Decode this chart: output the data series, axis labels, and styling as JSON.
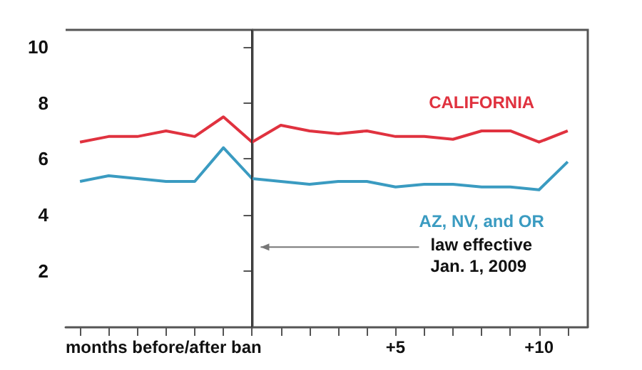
{
  "chart_data": {
    "type": "line",
    "xlabel": "months before/after ban",
    "x": [
      -6,
      -5,
      -4,
      -3,
      -2,
      -1,
      0,
      1,
      2,
      3,
      4,
      5,
      6,
      7,
      8,
      9,
      10,
      11
    ],
    "series": [
      {
        "name": "CALIFORNIA",
        "color": "#e0323f",
        "values": [
          6.6,
          6.8,
          6.8,
          7.0,
          6.8,
          7.5,
          6.6,
          7.2,
          7.0,
          6.9,
          7.0,
          6.8,
          6.8,
          6.7,
          7.0,
          7.0,
          6.6,
          7.0
        ]
      },
      {
        "name": "AZ, NV, and OR",
        "color": "#3a9bc1",
        "values": [
          5.2,
          5.4,
          5.3,
          5.2,
          5.2,
          6.4,
          5.3,
          5.2,
          5.1,
          5.2,
          5.2,
          5.0,
          5.1,
          5.1,
          5.0,
          5.0,
          4.9,
          5.9
        ]
      }
    ],
    "xlim": [
      -6.5,
      11.7
    ],
    "xticks": [
      {
        "value": -6,
        "label": null
      },
      {
        "value": -5,
        "label": null
      },
      {
        "value": -4,
        "label": null
      },
      {
        "value": -3,
        "label": null
      },
      {
        "value": -2,
        "label": null
      },
      {
        "value": -1,
        "label": null
      },
      {
        "value": 0,
        "label": null
      },
      {
        "value": 1,
        "label": null
      },
      {
        "value": 2,
        "label": null
      },
      {
        "value": 3,
        "label": null
      },
      {
        "value": 4,
        "label": null
      },
      {
        "value": 5,
        "label": "+5"
      },
      {
        "value": 6,
        "label": null
      },
      {
        "value": 7,
        "label": null
      },
      {
        "value": 8,
        "label": null
      },
      {
        "value": 9,
        "label": null
      },
      {
        "value": 10,
        "label": "+10"
      },
      {
        "value": 11,
        "label": null
      }
    ],
    "ylim": [
      0,
      10.6
    ],
    "yticks": [
      2,
      4,
      6,
      8,
      10
    ],
    "ref_lines": [
      {
        "axis": "x",
        "value": 0,
        "color": "#333333"
      }
    ],
    "annotations": [
      "law effective\nJan. 1, 2009"
    ],
    "grid": false,
    "marker": "none",
    "line_style": "solid"
  }
}
